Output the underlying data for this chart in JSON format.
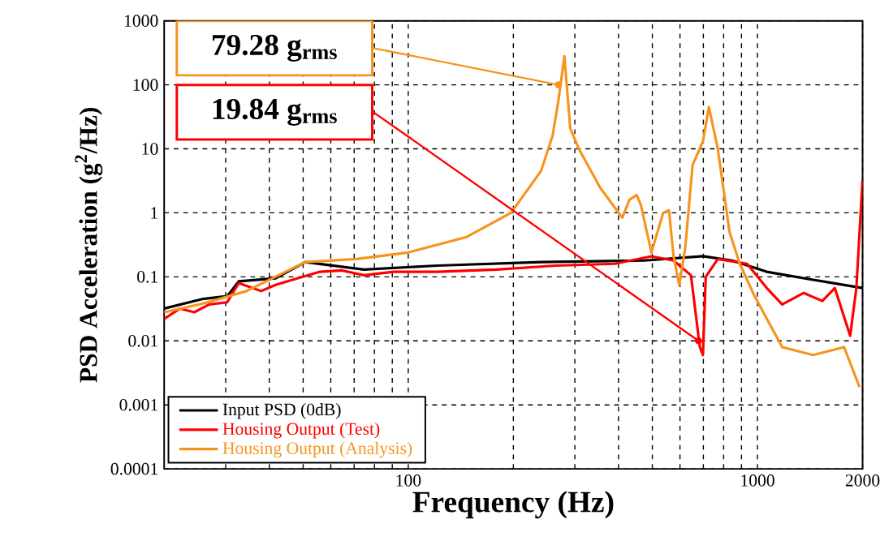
{
  "chart_data": {
    "type": "line",
    "xlabel": "Frequency (Hz)",
    "ylabel": "PSD Acceleration (g$^{2}$/Hz)",
    "log": "xy",
    "grid": true,
    "legend": "bottom left",
    "marker": "none",
    "line_style": "solid",
    "xlim": [
      20,
      2000
    ],
    "xticks": [
      {
        "value": 30,
        "label": null
      },
      {
        "value": 40,
        "label": null
      },
      {
        "value": 50,
        "label": null
      },
      {
        "value": 60,
        "label": null
      },
      {
        "value": 70,
        "label": null
      },
      {
        "value": 80,
        "label": null
      },
      {
        "value": 90,
        "label": null
      },
      100,
      {
        "value": 200,
        "label": null
      },
      {
        "value": 300,
        "label": null
      },
      {
        "value": 400,
        "label": null
      },
      {
        "value": 500,
        "label": null
      },
      {
        "value": 600,
        "label": null
      },
      {
        "value": 700,
        "label": null
      },
      {
        "value": 800,
        "label": null
      },
      {
        "value": 900,
        "label": null
      },
      1000,
      2000
    ],
    "ylim": [
      0.0001,
      1000
    ],
    "yticks": [
      0.0001,
      0.001,
      0.01,
      0.1,
      1,
      10,
      100,
      1000
    ],
    "series": [
      {
        "name": "Input PSD (0dB)",
        "color": "#000000",
        "x": [
          20,
          25.7,
          30.3,
          32.7,
          41.7,
          50.7,
          74.7,
          121,
          240,
          473,
          698,
          847,
          1063,
          1443,
          2000
        ],
        "values": [
          0.032,
          0.045,
          0.05,
          0.085,
          0.095,
          0.17,
          0.13,
          0.15,
          0.17,
          0.18,
          0.21,
          0.18,
          0.12,
          0.09,
          0.067
        ]
      },
      {
        "name": "Housing Output (Test)",
        "color": "#ff0000",
        "x": [
          20,
          22.2,
          24.4,
          26.9,
          30.3,
          32.7,
          37.9,
          41.7,
          48.3,
          55.9,
          64.6,
          74.7,
          90.7,
          121,
          179,
          264,
          390,
          497,
          575,
          645,
          684,
          698,
          711,
          770,
          934,
          1063,
          1177,
          1357,
          1534,
          1665,
          1843,
          1920,
          2000
        ],
        "values": [
          0.022,
          0.032,
          0.028,
          0.037,
          0.04,
          0.08,
          0.06,
          0.075,
          0.095,
          0.12,
          0.126,
          0.106,
          0.12,
          0.12,
          0.13,
          0.15,
          0.16,
          0.21,
          0.18,
          0.106,
          0.008,
          0.006,
          0.1,
          0.19,
          0.16,
          0.067,
          0.037,
          0.056,
          0.042,
          0.067,
          0.012,
          0.067,
          3.3
        ]
      },
      {
        "name": "Housing Output (Analysis)",
        "color": "#f7941d",
        "x": [
          20,
          25.7,
          34.4,
          50.7,
          71,
          100,
          147,
          197,
          240,
          259,
          269,
          280,
          291,
          308,
          354,
          410,
          430,
          451,
          464,
          497,
          537,
          558,
          575,
          597,
          621,
          652,
          698,
          726,
          770,
          832,
          890,
          981,
          1177,
          1443,
          1770,
          1960
        ],
        "values": [
          0.028,
          0.038,
          0.06,
          0.17,
          0.19,
          0.24,
          0.42,
          1.0,
          4.5,
          16,
          56,
          280,
          21,
          10,
          2.5,
          0.84,
          1.6,
          1.9,
          1.3,
          0.24,
          1.0,
          1.1,
          0.21,
          0.075,
          0.28,
          5.6,
          13,
          45,
          10,
          0.5,
          0.16,
          0.05,
          0.008,
          0.006,
          0.008,
          0.0019
        ]
      }
    ],
    "annotations": [
      {
        "text": "79.28 g$_{rms}$",
        "x": 269,
        "y": 100
      },
      {
        "text": "19.84 g$_{rms}$",
        "x": 678,
        "y": 0.01
      }
    ]
  }
}
